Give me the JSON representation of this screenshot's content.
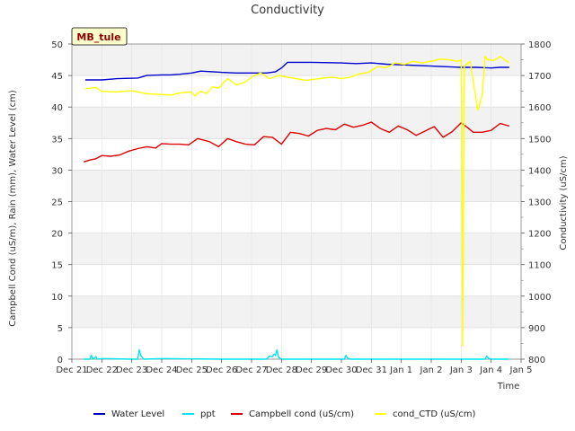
{
  "chart_data": {
    "type": "line",
    "title": "Conductivity",
    "site_label": "MB_tule",
    "xlabel": "Time",
    "ylabel_left": "Campbell Cond (uS/m), Rain (mm), Water Level (cm)",
    "ylabel_right": "Conductivity (uS/cm)",
    "ylim_left": [
      0,
      50
    ],
    "ylim_right": [
      800,
      1800
    ],
    "xlim_days": [
      0,
      15
    ],
    "x_ticks": [
      "Dec 21",
      "Dec 22",
      "Dec 23",
      "Dec 24",
      "Dec 25",
      "Dec 26",
      "Dec 27",
      "Dec 28",
      "Dec 29",
      "Dec 30",
      "Dec 31",
      "Jan 1",
      "Jan 2",
      "Jan 3",
      "Jan 4",
      "Jan 5"
    ],
    "y_left_ticks": [
      0,
      5,
      10,
      15,
      20,
      25,
      30,
      35,
      40,
      45,
      50
    ],
    "y_right_ticks": [
      800,
      900,
      1000,
      1100,
      1200,
      1300,
      1400,
      1500,
      1600,
      1700,
      1800
    ],
    "grid": true,
    "legend_position": "bottom",
    "series": [
      {
        "name": "Water Level",
        "color": "#0000cc",
        "axis": "left",
        "x": [
          0.45,
          1.0,
          1.5,
          2.2,
          2.5,
          3.0,
          3.3,
          3.6,
          4.0,
          4.3,
          4.7,
          5.0,
          5.5,
          6.0,
          6.5,
          6.8,
          7.0,
          7.2,
          8.0,
          9.0,
          9.5,
          10.0,
          10.5,
          11.0,
          12.0,
          13.0,
          13.5,
          14.0,
          14.3,
          14.6
        ],
        "y": [
          44.3,
          44.3,
          44.5,
          44.6,
          45.0,
          45.1,
          45.1,
          45.2,
          45.4,
          45.7,
          45.6,
          45.5,
          45.4,
          45.4,
          45.4,
          45.6,
          46.2,
          47.1,
          47.1,
          47.0,
          46.9,
          47.0,
          46.8,
          46.7,
          46.5,
          46.3,
          46.3,
          46.2,
          46.3,
          46.3
        ]
      },
      {
        "name": "ppt",
        "color": "#00e5ee",
        "axis": "left",
        "x": [
          0.4,
          0.6,
          0.65,
          0.7,
          0.8,
          0.85,
          1.0,
          2.0,
          2.2,
          2.25,
          2.3,
          2.4,
          3.0,
          5.0,
          6.0,
          6.5,
          6.6,
          6.7,
          6.75,
          6.8,
          6.85,
          6.9,
          7.0,
          8.0,
          9.0,
          9.1,
          9.15,
          9.2,
          9.3,
          10.0,
          11.0,
          12.0,
          13.0,
          13.8,
          13.85,
          13.9,
          14.0,
          14.6
        ],
        "y": [
          0,
          0,
          0.6,
          0,
          0.4,
          0,
          0.1,
          0,
          0,
          1.5,
          0.6,
          0,
          0.1,
          0,
          0,
          0,
          0.5,
          0.4,
          0.8,
          0.6,
          1.5,
          0.3,
          0,
          0,
          0,
          0,
          0.6,
          0.2,
          0,
          0,
          0,
          0,
          0,
          0,
          0.5,
          0.2,
          0,
          0
        ]
      },
      {
        "name": "Campbell cond (uS/cm)",
        "color": "#dd0000",
        "axis": "left",
        "x": [
          0.4,
          0.6,
          0.8,
          1.0,
          1.3,
          1.6,
          1.9,
          2.2,
          2.5,
          2.8,
          3.0,
          3.3,
          3.6,
          3.9,
          4.2,
          4.6,
          4.9,
          5.2,
          5.5,
          5.8,
          6.1,
          6.4,
          6.7,
          7.0,
          7.3,
          7.6,
          7.9,
          8.2,
          8.5,
          8.8,
          9.1,
          9.4,
          9.7,
          10.0,
          10.3,
          10.6,
          10.9,
          11.2,
          11.5,
          11.8,
          12.1,
          12.4,
          12.7,
          13.0,
          13.2,
          13.4,
          13.7,
          14.0,
          14.3,
          14.6
        ],
        "y": [
          31.3,
          31.6,
          31.8,
          32.3,
          32.2,
          32.4,
          33.0,
          33.4,
          33.7,
          33.5,
          34.2,
          34.1,
          34.1,
          34.0,
          35.0,
          34.5,
          33.7,
          35.0,
          34.5,
          34.1,
          34.0,
          35.3,
          35.2,
          34.1,
          36.0,
          35.8,
          35.4,
          36.3,
          36.6,
          36.4,
          37.3,
          36.8,
          37.1,
          37.6,
          36.6,
          36.0,
          37.0,
          36.4,
          35.5,
          36.2,
          36.9,
          35.2,
          36.1,
          37.5,
          36.8,
          36.0,
          36.0,
          36.3,
          37.4,
          37.0
        ]
      },
      {
        "name": "cond_CTD (uS/cm)",
        "color": "#ffff00",
        "axis": "right",
        "x": [
          0.45,
          0.8,
          1.0,
          1.5,
          2.0,
          2.3,
          2.5,
          3.0,
          3.3,
          3.6,
          4.0,
          4.1,
          4.3,
          4.5,
          4.7,
          4.9,
          5.2,
          5.5,
          5.8,
          6.0,
          6.3,
          6.6,
          6.9,
          7.2,
          7.5,
          7.8,
          8.1,
          8.4,
          8.7,
          9.0,
          9.3,
          9.6,
          9.9,
          10.2,
          10.5,
          10.8,
          11.1,
          11.4,
          11.7,
          12.0,
          12.3,
          12.6,
          12.9,
          13.0,
          13.02,
          13.05,
          13.1,
          13.3,
          13.55,
          13.6,
          13.7,
          13.8,
          13.9,
          14.1,
          14.3,
          14.6
        ],
        "y": [
          1658,
          1662,
          1650,
          1648,
          1652,
          1646,
          1642,
          1640,
          1638,
          1645,
          1648,
          1635,
          1650,
          1643,
          1664,
          1660,
          1690,
          1670,
          1680,
          1695,
          1708,
          1690,
          1700,
          1695,
          1690,
          1685,
          1688,
          1692,
          1695,
          1690,
          1695,
          1705,
          1710,
          1728,
          1725,
          1740,
          1735,
          1745,
          1740,
          1745,
          1752,
          1750,
          1745,
          1750,
          1640,
          842,
          1730,
          1745,
          1590,
          1600,
          1640,
          1760,
          1750,
          1748,
          1760,
          1740
        ]
      }
    ]
  }
}
